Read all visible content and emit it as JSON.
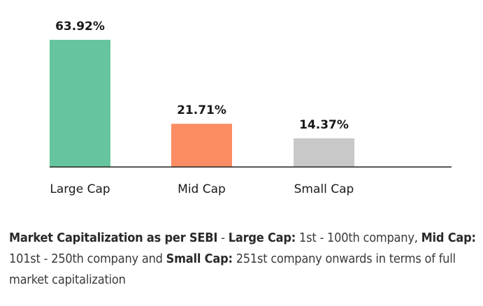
{
  "chart_data": {
    "type": "bar",
    "categories": [
      "Large Cap",
      "Mid Cap",
      "Small Cap"
    ],
    "values": [
      63.92,
      21.71,
      14.37
    ],
    "value_labels": [
      "63.92%",
      "21.71%",
      "14.37%"
    ],
    "colors": [
      "#66c59e",
      "#fc8d62",
      "#c8c8c8"
    ],
    "ylim": [
      0,
      63.92
    ],
    "grid": false,
    "title": "",
    "xlabel": "",
    "ylabel": ""
  },
  "note": {
    "part1_bold": "Market Capitalization as per SEBI",
    "part2": " - ",
    "part3_bold": "Large Cap:",
    "part4": " 1st - 100th company, ",
    "part5_bold": "Mid Cap:",
    "part6": " 101st - 250th company and ",
    "part7_bold": "Small Cap:",
    "part8": " 251st company onwards in terms of full market capitalization"
  }
}
